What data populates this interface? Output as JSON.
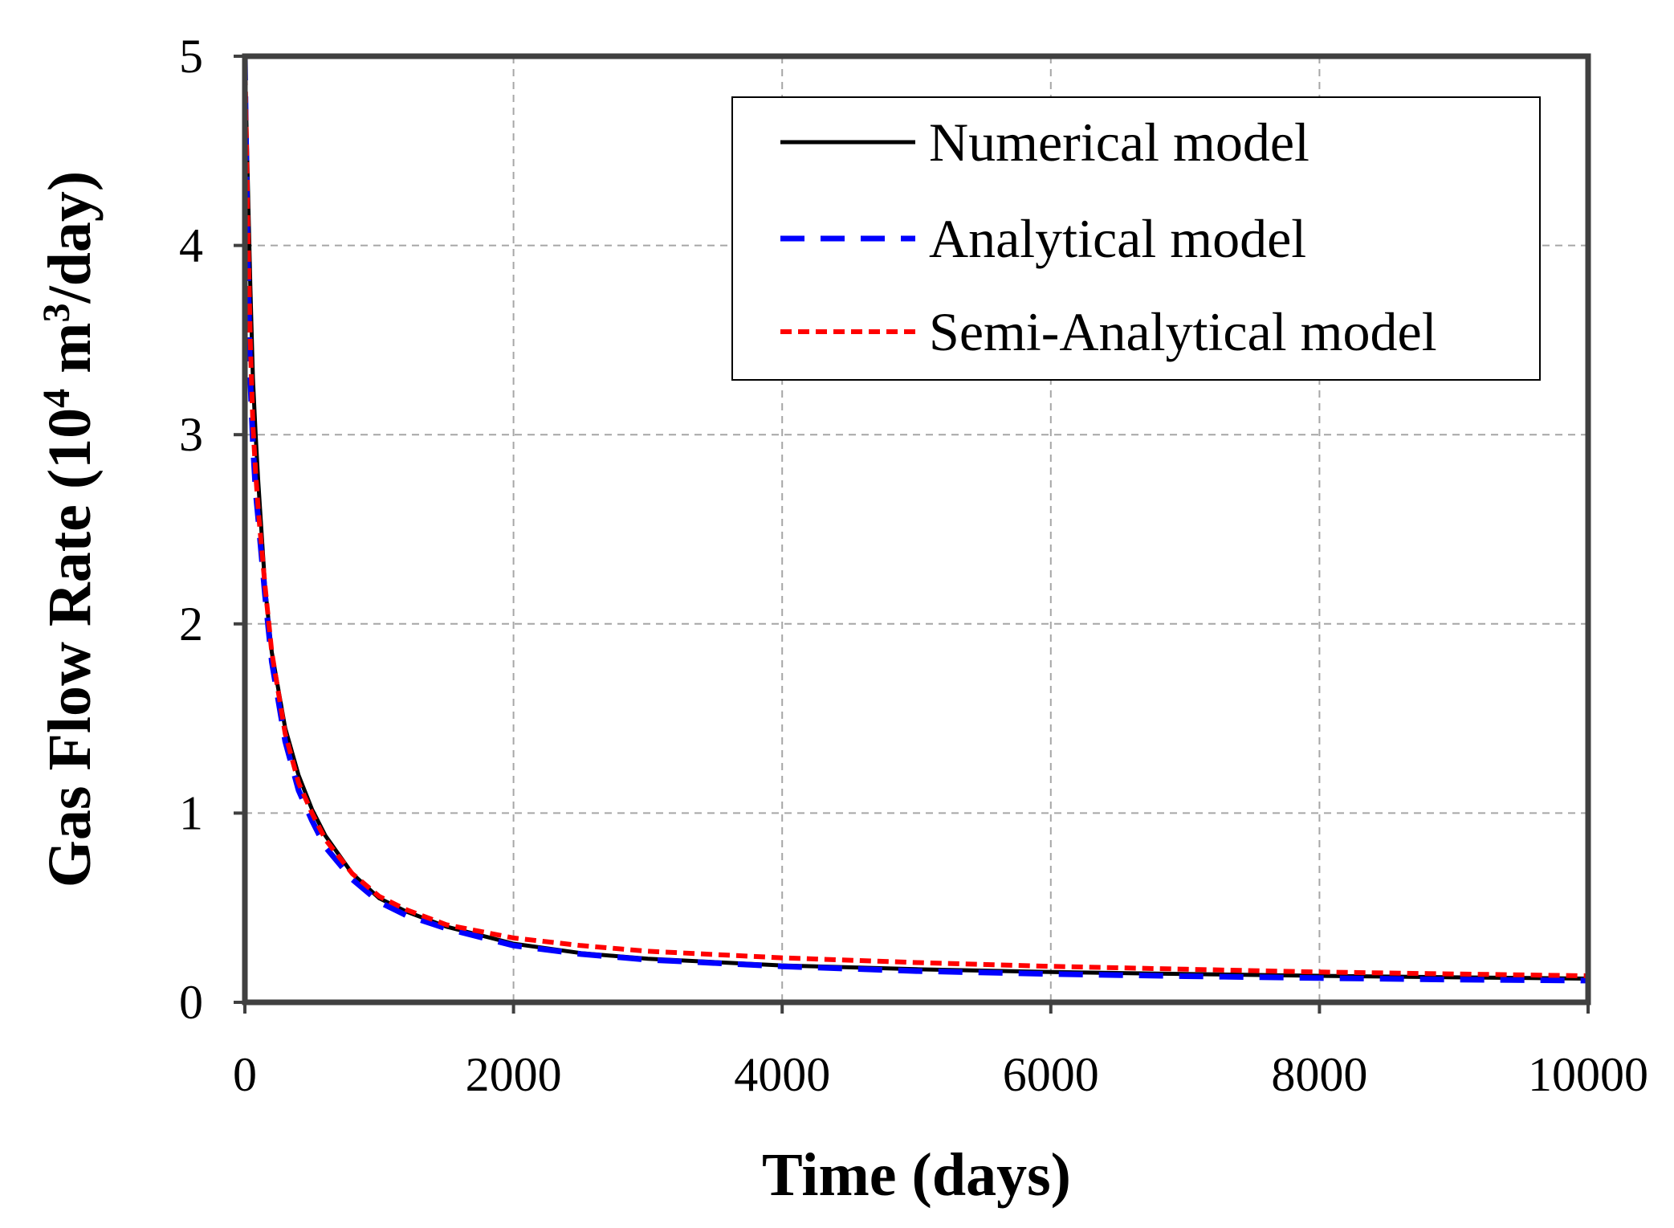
{
  "chart_data": {
    "type": "line",
    "title": "",
    "xlabel": "Time (days)",
    "ylabel": {
      "prefix": "Gas Flow Rate (10",
      "sup1": "4",
      "middle": " m",
      "sup2": "3",
      "suffix": "/day)"
    },
    "xlim": [
      0,
      10000
    ],
    "ylim": [
      0,
      5
    ],
    "xticks": [
      0,
      2000,
      4000,
      6000,
      8000,
      10000
    ],
    "yticks": [
      0,
      1,
      2,
      3,
      4,
      5
    ],
    "xtick_labels": [
      "0",
      "2000",
      "4000",
      "6000",
      "8000",
      "10000"
    ],
    "ytick_labels": [
      "0",
      "1",
      "2",
      "3",
      "4",
      "5"
    ],
    "grid": true,
    "legend_position": "top-right",
    "series": [
      {
        "name": "Numerical model",
        "color": "#000000",
        "style": "solid",
        "x": [
          0,
          20,
          40,
          60,
          80,
          100,
          150,
          200,
          300,
          400,
          500,
          600,
          800,
          1000,
          1200,
          1500,
          2000,
          2500,
          3000,
          4000,
          5000,
          6000,
          7000,
          8000,
          9000,
          10000
        ],
        "y": [
          5.0,
          4.4,
          3.8,
          3.3,
          3.0,
          2.75,
          2.2,
          1.85,
          1.45,
          1.2,
          1.02,
          0.88,
          0.68,
          0.55,
          0.48,
          0.4,
          0.31,
          0.26,
          0.23,
          0.195,
          0.175,
          0.16,
          0.15,
          0.14,
          0.132,
          0.125
        ]
      },
      {
        "name": "Analytical model",
        "color": "#0000ff",
        "style": "dashed",
        "x": [
          0,
          20,
          40,
          60,
          80,
          100,
          150,
          200,
          300,
          400,
          500,
          600,
          800,
          1000,
          1200,
          1500,
          2000,
          2500,
          3000,
          4000,
          5000,
          6000,
          7000,
          8000,
          9000,
          10000
        ],
        "y": [
          5.0,
          4.0,
          3.3,
          2.95,
          2.7,
          2.55,
          2.15,
          1.8,
          1.38,
          1.12,
          0.96,
          0.82,
          0.65,
          0.53,
          0.46,
          0.39,
          0.3,
          0.255,
          0.225,
          0.19,
          0.165,
          0.15,
          0.138,
          0.128,
          0.12,
          0.115
        ]
      },
      {
        "name": "Semi-Analytical model",
        "color": "#ff0000",
        "style": "dotted",
        "x": [
          0,
          20,
          40,
          60,
          80,
          100,
          150,
          200,
          300,
          400,
          500,
          600,
          800,
          1000,
          1200,
          1500,
          2000,
          2500,
          3000,
          4000,
          5000,
          6000,
          7000,
          8000,
          9000,
          10000
        ],
        "y": [
          5.0,
          4.2,
          3.5,
          3.05,
          2.8,
          2.6,
          2.2,
          1.85,
          1.42,
          1.16,
          1.0,
          0.86,
          0.68,
          0.56,
          0.49,
          0.41,
          0.34,
          0.3,
          0.27,
          0.235,
          0.21,
          0.19,
          0.175,
          0.16,
          0.15,
          0.14
        ]
      }
    ]
  }
}
